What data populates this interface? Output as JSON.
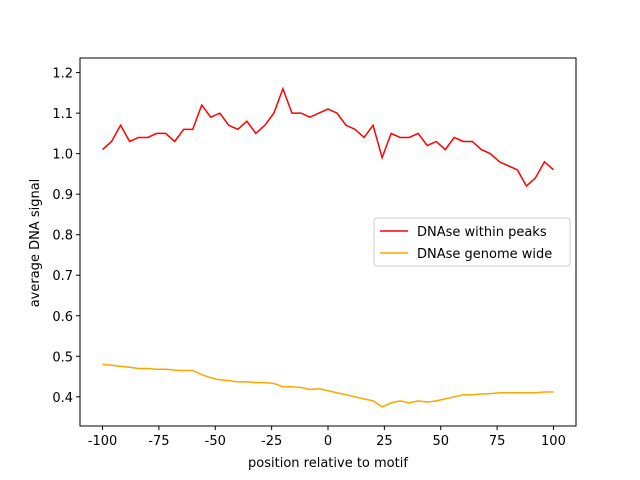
{
  "chart_data": {
    "type": "line",
    "xlabel": "position relative to motif",
    "ylabel": "average DNA signal",
    "x": [
      -100,
      -96,
      -92,
      -88,
      -84,
      -80,
      -76,
      -72,
      -68,
      -64,
      -60,
      -56,
      -52,
      -48,
      -44,
      -40,
      -36,
      -32,
      -28,
      -24,
      -20,
      -16,
      -12,
      -8,
      -4,
      0,
      4,
      8,
      12,
      16,
      20,
      24,
      28,
      32,
      36,
      40,
      44,
      48,
      52,
      56,
      60,
      64,
      68,
      72,
      76,
      80,
      84,
      88,
      92,
      96,
      100
    ],
    "series": [
      {
        "name": "DNAse within peaks",
        "color": "#ff0000",
        "values": [
          1.01,
          1.03,
          1.07,
          1.03,
          1.04,
          1.04,
          1.05,
          1.05,
          1.03,
          1.06,
          1.06,
          1.12,
          1.09,
          1.1,
          1.07,
          1.06,
          1.08,
          1.05,
          1.07,
          1.1,
          1.16,
          1.1,
          1.1,
          1.09,
          1.1,
          1.11,
          1.1,
          1.07,
          1.06,
          1.04,
          1.07,
          0.99,
          1.05,
          1.04,
          1.04,
          1.05,
          1.02,
          1.03,
          1.01,
          1.04,
          1.03,
          1.03,
          1.01,
          1.0,
          0.98,
          0.97,
          0.96,
          0.92,
          0.94,
          0.98,
          0.96
        ]
      },
      {
        "name": "DNAse genome wide",
        "color": "#ffa500",
        "values": [
          0.48,
          0.478,
          0.475,
          0.473,
          0.47,
          0.47,
          0.468,
          0.468,
          0.466,
          0.465,
          0.465,
          0.455,
          0.447,
          0.442,
          0.44,
          0.437,
          0.437,
          0.435,
          0.435,
          0.433,
          0.425,
          0.425,
          0.423,
          0.418,
          0.42,
          0.415,
          0.41,
          0.405,
          0.4,
          0.395,
          0.39,
          0.375,
          0.385,
          0.39,
          0.385,
          0.39,
          0.387,
          0.39,
          0.395,
          0.4,
          0.405,
          0.405,
          0.407,
          0.408,
          0.41,
          0.41,
          0.41,
          0.41,
          0.41,
          0.412,
          0.412
        ]
      }
    ],
    "xlim": [
      -110,
      110
    ],
    "ylim": [
      0.328,
      1.236
    ],
    "xticks": [
      -100,
      -75,
      -50,
      -25,
      0,
      25,
      50,
      75,
      100
    ],
    "yticks": [
      0.4,
      0.5,
      0.6,
      0.7,
      0.8,
      0.9,
      {
        "value": 1,
        "label": "1.0"
      },
      1.1,
      1.2
    ],
    "legend": "center right"
  }
}
